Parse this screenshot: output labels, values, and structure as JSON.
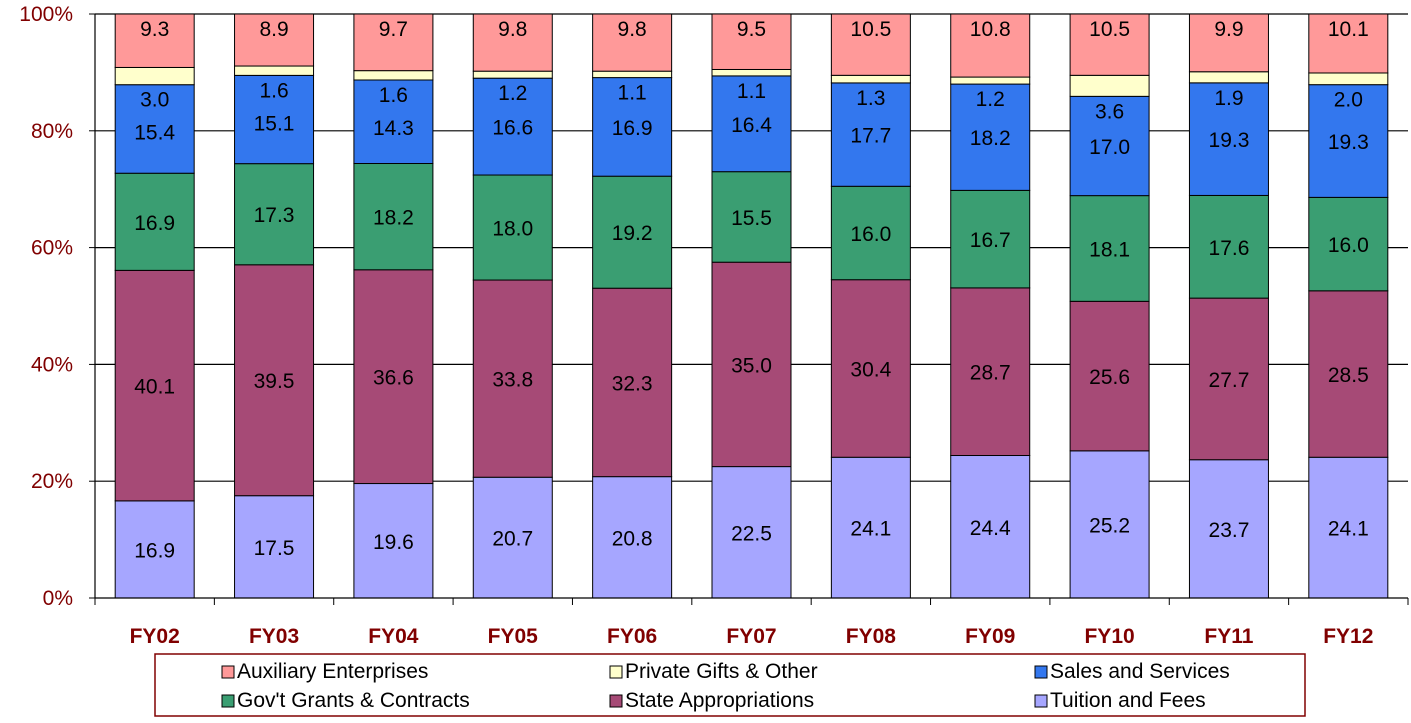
{
  "chart_data": {
    "type": "bar",
    "stacked": true,
    "percent_stacked": true,
    "categories": [
      "FY02",
      "FY03",
      "FY04",
      "FY05",
      "FY06",
      "FY07",
      "FY08",
      "FY09",
      "FY10",
      "FY11",
      "FY12"
    ],
    "series": [
      {
        "name": "Tuition and Fees",
        "color": "#A6A6FF",
        "values": [
          16.9,
          17.5,
          19.6,
          20.7,
          20.8,
          22.5,
          24.1,
          24.4,
          25.2,
          23.7,
          24.1
        ]
      },
      {
        "name": "State Appropriations",
        "color": "#A64A76",
        "values": [
          40.1,
          39.5,
          36.6,
          33.8,
          32.3,
          35.0,
          30.4,
          28.7,
          25.6,
          27.7,
          28.5
        ]
      },
      {
        "name": "Gov't Grants & Contracts",
        "color": "#3A9E72",
        "values": [
          16.9,
          17.3,
          18.2,
          18.0,
          19.2,
          15.5,
          16.0,
          16.7,
          18.1,
          17.6,
          16.0
        ]
      },
      {
        "name": "Sales and Services",
        "color": "#3377EE",
        "values": [
          15.4,
          15.1,
          14.3,
          16.6,
          16.9,
          16.4,
          17.7,
          18.2,
          17.0,
          19.3,
          19.3
        ]
      },
      {
        "name": "Private Gifts & Other",
        "color": "#FFFFCC",
        "values": [
          3.0,
          1.6,
          1.6,
          1.2,
          1.1,
          1.1,
          1.3,
          1.2,
          3.6,
          1.9,
          2.0
        ]
      },
      {
        "name": "Auxiliary Enterprises",
        "color": "#FF9999",
        "values": [
          9.3,
          8.9,
          9.7,
          9.8,
          9.8,
          9.5,
          10.5,
          10.8,
          10.5,
          9.9,
          10.1
        ]
      }
    ],
    "y_ticks": [
      "0%",
      "20%",
      "40%",
      "60%",
      "80%",
      "100%"
    ],
    "ylim": [
      0,
      100
    ],
    "grid": true,
    "legend": {
      "position": "bottom",
      "order": [
        "Auxiliary Enterprises",
        "Private Gifts & Other",
        "Sales and Services",
        "Gov't Grants & Contracts",
        "State Appropriations",
        "Tuition and Fees"
      ]
    },
    "colors": {
      "axis_text": "#800000",
      "legend_border": "#800000",
      "gridline": "#000000"
    }
  }
}
